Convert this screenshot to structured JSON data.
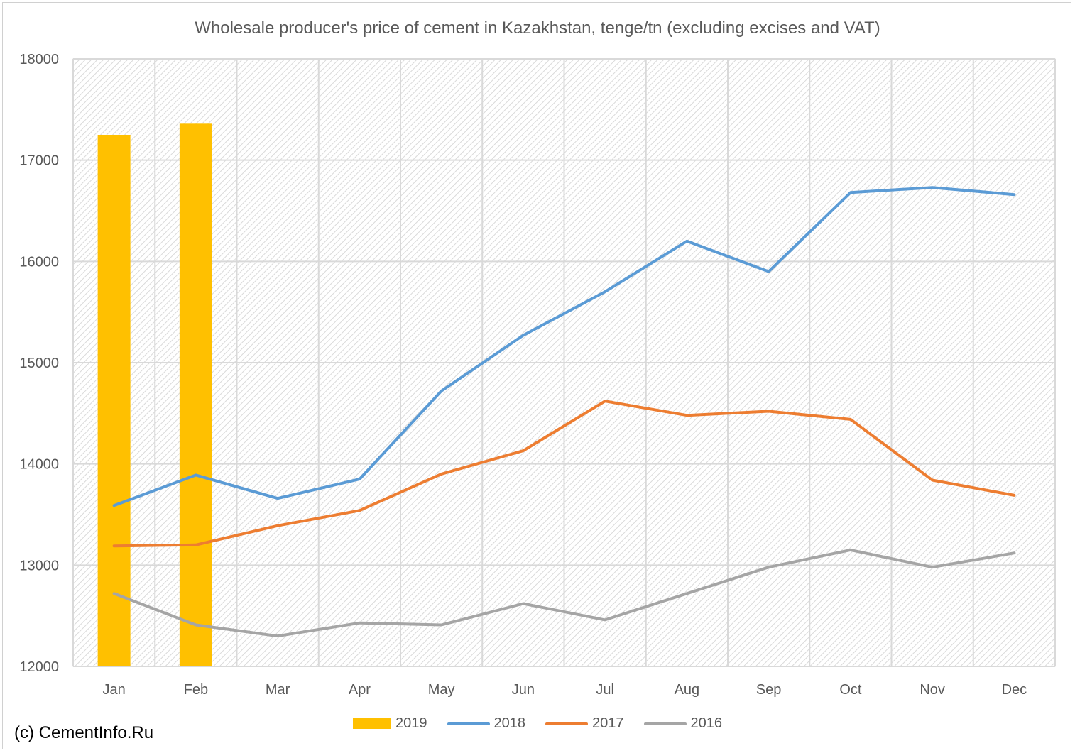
{
  "chart_data": {
    "type": "bar+line",
    "title": "Wholesale producer's price of cement in Kazakhstan, tenge/tn (excluding excises and VAT)",
    "categories": [
      "Jan",
      "Feb",
      "Mar",
      "Apr",
      "May",
      "Jun",
      "Jul",
      "Aug",
      "Sep",
      "Oct",
      "Nov",
      "Dec"
    ],
    "ylim": [
      12000,
      18000
    ],
    "yticks": [
      12000,
      13000,
      14000,
      15000,
      16000,
      17000,
      18000
    ],
    "grid": true,
    "legend_position": "bottom",
    "series": [
      {
        "name": "2019",
        "type": "bar",
        "color": "#FFC000",
        "values": [
          17250,
          17360,
          null,
          null,
          null,
          null,
          null,
          null,
          null,
          null,
          null,
          null
        ]
      },
      {
        "name": "2018",
        "type": "line",
        "color": "#5B9BD5",
        "values": [
          13590,
          13890,
          13660,
          13850,
          14720,
          15270,
          15700,
          16200,
          15900,
          16680,
          16730,
          16660
        ]
      },
      {
        "name": "2017",
        "type": "line",
        "color": "#ED7D31",
        "values": [
          13190,
          13200,
          13390,
          13540,
          13900,
          14130,
          14620,
          14480,
          14520,
          14440,
          13840,
          13690
        ]
      },
      {
        "name": "2016",
        "type": "line",
        "color": "#A5A5A5",
        "values": [
          12720,
          12410,
          12300,
          12430,
          12410,
          12620,
          12460,
          12720,
          12980,
          13150,
          12980,
          13120
        ]
      }
    ]
  },
  "credit": "(c) CementInfo.Ru"
}
